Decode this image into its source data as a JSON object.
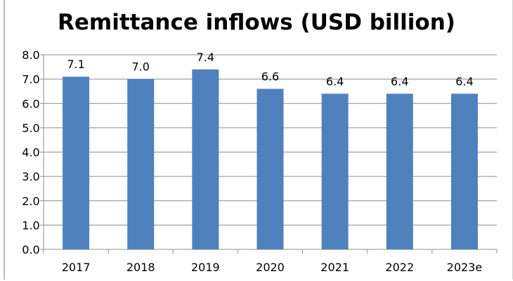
{
  "chart_data": {
    "type": "bar",
    "title": "Remittance inflows (USD billion)",
    "categories": [
      "2017",
      "2018",
      "2019",
      "2020",
      "2021",
      "2022",
      "2023e"
    ],
    "values": [
      7.1,
      7.0,
      7.4,
      6.6,
      6.4,
      6.4,
      6.4
    ],
    "data_labels": [
      "7.1",
      "7.0",
      "7.4",
      "6.6",
      "6.4",
      "6.4",
      "6.4"
    ],
    "ylim": [
      0,
      8
    ],
    "yticks": [
      "0.0",
      "1.0",
      "2.0",
      "3.0",
      "4.0",
      "5.0",
      "6.0",
      "7.0",
      "8.0"
    ],
    "xlabel": "",
    "ylabel": "",
    "grid": true,
    "legend": "none",
    "bar_color": "#4f81bd"
  }
}
